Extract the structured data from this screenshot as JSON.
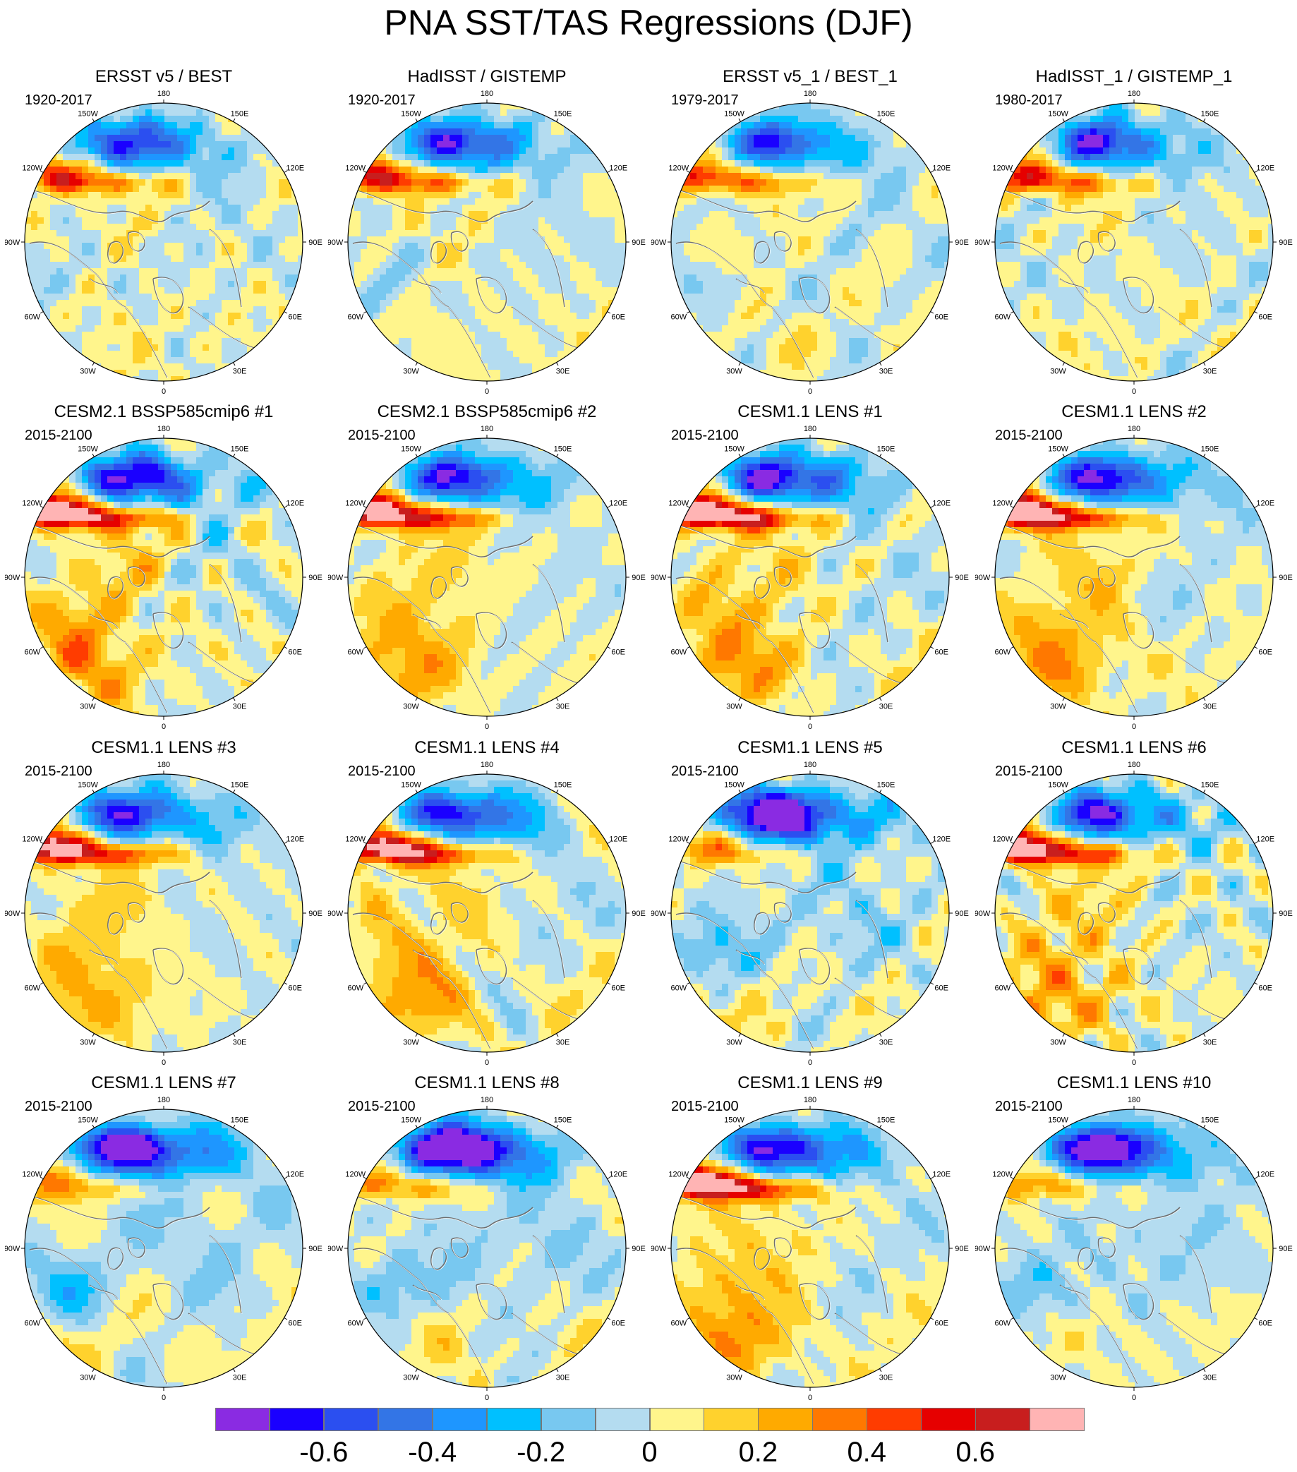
{
  "title": "PNA SST/TAS Regressions (DJF)",
  "longitude_labels": {
    "top": "180",
    "upper_right": "150E",
    "right_upper": "120E",
    "right": "90E",
    "right_lower": "60E",
    "lower_right": "30E",
    "bottom": "0",
    "lower_left": "30W",
    "left_lower": "60W",
    "left": "90W",
    "left_upper": "120W",
    "upper_left": "150W"
  },
  "panels": [
    {
      "title": "ERSST v5 / BEST",
      "period": "1920-2017",
      "pattern": "obs",
      "amp": 0.85,
      "seed": 1
    },
    {
      "title": "HadISST / GISTEMP",
      "period": "1920-2017",
      "pattern": "obs",
      "amp": 0.9,
      "seed": 2
    },
    {
      "title": "ERSST v5_1 / BEST_1",
      "period": "1979-2017",
      "pattern": "obs",
      "amp": 0.8,
      "seed": 3
    },
    {
      "title": "HadISST_1 / GISTEMP_1",
      "period": "1980-2017",
      "pattern": "obs",
      "amp": 0.85,
      "seed": 4
    },
    {
      "title": "CESM2.1 BSSP585cmip6 #1",
      "period": "2015-2100",
      "pattern": "warm",
      "amp": 1.0,
      "seed": 5
    },
    {
      "title": "CESM2.1 BSSP585cmip6 #2",
      "period": "2015-2100",
      "pattern": "warm",
      "amp": 0.95,
      "seed": 6
    },
    {
      "title": "CESM1.1 LENS #1",
      "period": "2015-2100",
      "pattern": "warm",
      "amp": 1.05,
      "seed": 7
    },
    {
      "title": "CESM1.1 LENS #2",
      "period": "2015-2100",
      "pattern": "warm",
      "amp": 1.0,
      "seed": 8
    },
    {
      "title": "CESM1.1 LENS #3",
      "period": "2015-2100",
      "pattern": "warm",
      "amp": 0.9,
      "seed": 9
    },
    {
      "title": "CESM1.1 LENS #4",
      "period": "2015-2100",
      "pattern": "warm",
      "amp": 0.95,
      "seed": 10
    },
    {
      "title": "CESM1.1 LENS #5",
      "period": "2015-2100",
      "pattern": "cold",
      "amp": 1.0,
      "seed": 11
    },
    {
      "title": "CESM1.1 LENS #6",
      "period": "2015-2100",
      "pattern": "warm",
      "amp": 0.9,
      "seed": 12
    },
    {
      "title": "CESM1.1 LENS #7",
      "period": "2015-2100",
      "pattern": "cold",
      "amp": 0.95,
      "seed": 13
    },
    {
      "title": "CESM1.1 LENS #8",
      "period": "2015-2100",
      "pattern": "cold",
      "amp": 1.1,
      "seed": 14
    },
    {
      "title": "CESM1.1 LENS #9",
      "period": "2015-2100",
      "pattern": "warm",
      "amp": 1.05,
      "seed": 15
    },
    {
      "title": "CESM1.1 LENS #10",
      "period": "2015-2100",
      "pattern": "cold",
      "amp": 0.9,
      "seed": 16
    }
  ],
  "colorbar": {
    "colors": [
      "#8a2be2",
      "#1a00ff",
      "#2b4ff0",
      "#3375e6",
      "#1e96ff",
      "#00c0ff",
      "#78c8f0",
      "#b4dcf0",
      "#fff58c",
      "#ffd22d",
      "#ffaa00",
      "#ff7800",
      "#ff3c00",
      "#e60000",
      "#c81e1e",
      "#ffb4b4"
    ],
    "levels": [
      -0.7,
      -0.6,
      -0.5,
      -0.4,
      -0.3,
      -0.2,
      -0.1,
      0,
      0.1,
      0.2,
      0.3,
      0.4,
      0.5,
      0.6,
      0.7
    ],
    "tick_labels": [
      {
        "value": -0.6,
        "text": "-0.6"
      },
      {
        "value": -0.4,
        "text": "-0.4"
      },
      {
        "value": -0.2,
        "text": "-0.2"
      },
      {
        "value": 0,
        "text": "0"
      },
      {
        "value": 0.2,
        "text": "0.2"
      },
      {
        "value": 0.4,
        "text": "0.4"
      },
      {
        "value": 0.6,
        "text": "0.6"
      }
    ]
  }
}
